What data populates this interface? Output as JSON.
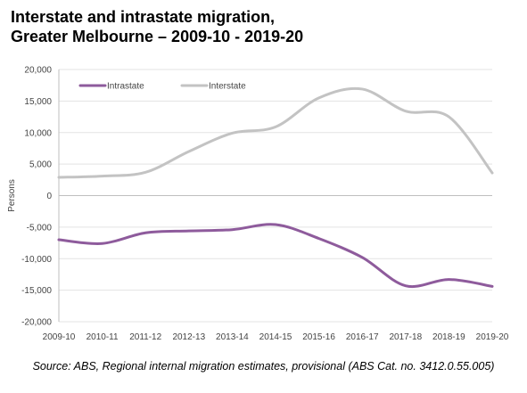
{
  "chart_data": {
    "type": "line",
    "title_line1": "Interstate and intrastate migration,",
    "title_line2": "Greater Melbourne – 2009-10 - 2019-20",
    "xlabel": "",
    "ylabel": "Persons",
    "categories": [
      "2009-10",
      "2010-11",
      "2011-12",
      "2012-13",
      "2013-14",
      "2014-15",
      "2015-16",
      "2016-17",
      "2017-18",
      "2018-19",
      "2019-20"
    ],
    "ylim": [
      -20000,
      20000
    ],
    "yticks": [
      20000,
      15000,
      10000,
      5000,
      0,
      -5000,
      -10000,
      -15000,
      -20000
    ],
    "ytick_labels": [
      "20,000",
      "15,000",
      "10,000",
      "5,000",
      "0",
      "-5,000",
      "-10,000",
      "-15,000",
      "-20,000"
    ],
    "grid": true,
    "legend_position": "top-left",
    "series": [
      {
        "name": "Intrastate",
        "color": "#8e5b9c",
        "values": [
          -7000,
          -7600,
          -5900,
          -5600,
          -5400,
          -4600,
          -6800,
          -9800,
          -14300,
          -13300,
          -14400
        ]
      },
      {
        "name": "Interstate",
        "color": "#c3c3c3",
        "values": [
          2900,
          3100,
          3700,
          7000,
          9900,
          10900,
          15500,
          16900,
          13400,
          12500,
          3600
        ]
      }
    ],
    "source": "Source:  ABS, Regional internal migration estimates, provisional (ABS Cat. no. 3412.0.55.005)"
  }
}
